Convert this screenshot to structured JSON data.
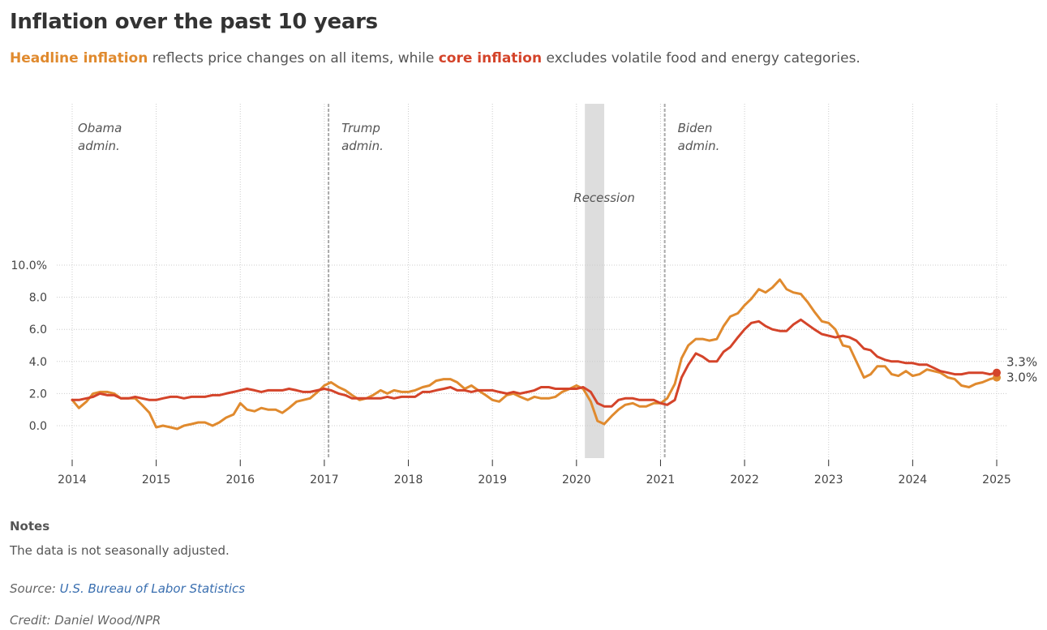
{
  "header": {
    "title": "Inflation over the past 10 years",
    "subtitle_headline": "Headline inflation",
    "subtitle_mid": " reflects price changes on all items, while ",
    "subtitle_core": "core inflation",
    "subtitle_end": " excludes volatile food and energy categories."
  },
  "footer": {
    "notes_title": "Notes",
    "notes_text": "The data is not seasonally adjusted.",
    "source_prefix": "Source: ",
    "source_link": "U.S. Bureau of Labor Statistics",
    "credit": "Credit: Daniel Wood/NPR"
  },
  "colors": {
    "headline": "#e08a2e",
    "core": "#d4442a",
    "grid": "#cccccc",
    "recession": "#dddddd",
    "admin_line": "#aaaaaa"
  },
  "chart_data": {
    "type": "line",
    "ylim": [
      -1,
      10
    ],
    "xlim": [
      2014,
      2025.1
    ],
    "y_ticks": [
      {
        "value": 10,
        "label": "10.0%"
      },
      {
        "value": 8,
        "label": "8.0"
      },
      {
        "value": 6,
        "label": "6.0"
      },
      {
        "value": 4,
        "label": "4.0"
      },
      {
        "value": 2,
        "label": "2.0"
      },
      {
        "value": 0,
        "label": "0.0"
      }
    ],
    "x_ticks": [
      {
        "value": 2014,
        "label": "2014"
      },
      {
        "value": 2015,
        "label": "2015"
      },
      {
        "value": 2016,
        "label": "2016"
      },
      {
        "value": 2017,
        "label": "2017"
      },
      {
        "value": 2018,
        "label": "2018"
      },
      {
        "value": 2019,
        "label": "2019"
      },
      {
        "value": 2020,
        "label": "2020"
      },
      {
        "value": 2021,
        "label": "2021"
      },
      {
        "value": 2022,
        "label": "2022"
      },
      {
        "value": 2023,
        "label": "2023"
      },
      {
        "value": 2024,
        "label": "2024"
      },
      {
        "value": 2025,
        "label": "2025"
      }
    ],
    "grid": true,
    "recession": {
      "start": 2020.1,
      "end": 2020.33,
      "label": "Recession"
    },
    "administrations": [
      {
        "start": 2014,
        "line": false,
        "lines": [
          "Obama",
          "admin."
        ]
      },
      {
        "start": 2017.05,
        "line": true,
        "lines": [
          "Trump",
          "admin."
        ]
      },
      {
        "start": 2021.05,
        "line": true,
        "lines": [
          "Biden",
          "admin."
        ]
      }
    ],
    "series": [
      {
        "key": "headline",
        "end_label": "3.0%",
        "points": [
          [
            2014.0,
            1.6
          ],
          [
            2014.08,
            1.1
          ],
          [
            2014.17,
            1.5
          ],
          [
            2014.25,
            2.0
          ],
          [
            2014.33,
            2.1
          ],
          [
            2014.42,
            2.1
          ],
          [
            2014.5,
            2.0
          ],
          [
            2014.58,
            1.7
          ],
          [
            2014.67,
            1.7
          ],
          [
            2014.75,
            1.7
          ],
          [
            2014.83,
            1.3
          ],
          [
            2014.92,
            0.8
          ],
          [
            2015.0,
            -0.1
          ],
          [
            2015.08,
            0.0
          ],
          [
            2015.17,
            -0.1
          ],
          [
            2015.25,
            -0.2
          ],
          [
            2015.33,
            0.0
          ],
          [
            2015.42,
            0.1
          ],
          [
            2015.5,
            0.2
          ],
          [
            2015.58,
            0.2
          ],
          [
            2015.67,
            0.0
          ],
          [
            2015.75,
            0.2
          ],
          [
            2015.83,
            0.5
          ],
          [
            2015.92,
            0.7
          ],
          [
            2016.0,
            1.4
          ],
          [
            2016.08,
            1.0
          ],
          [
            2016.17,
            0.9
          ],
          [
            2016.25,
            1.1
          ],
          [
            2016.33,
            1.0
          ],
          [
            2016.42,
            1.0
          ],
          [
            2016.5,
            0.8
          ],
          [
            2016.58,
            1.1
          ],
          [
            2016.67,
            1.5
          ],
          [
            2016.75,
            1.6
          ],
          [
            2016.83,
            1.7
          ],
          [
            2016.92,
            2.1
          ],
          [
            2017.0,
            2.5
          ],
          [
            2017.08,
            2.7
          ],
          [
            2017.17,
            2.4
          ],
          [
            2017.25,
            2.2
          ],
          [
            2017.33,
            1.9
          ],
          [
            2017.42,
            1.6
          ],
          [
            2017.5,
            1.7
          ],
          [
            2017.58,
            1.9
          ],
          [
            2017.67,
            2.2
          ],
          [
            2017.75,
            2.0
          ],
          [
            2017.83,
            2.2
          ],
          [
            2017.92,
            2.1
          ],
          [
            2018.0,
            2.1
          ],
          [
            2018.08,
            2.2
          ],
          [
            2018.17,
            2.4
          ],
          [
            2018.25,
            2.5
          ],
          [
            2018.33,
            2.8
          ],
          [
            2018.42,
            2.9
          ],
          [
            2018.5,
            2.9
          ],
          [
            2018.58,
            2.7
          ],
          [
            2018.67,
            2.3
          ],
          [
            2018.75,
            2.5
          ],
          [
            2018.83,
            2.2
          ],
          [
            2018.92,
            1.9
          ],
          [
            2019.0,
            1.6
          ],
          [
            2019.08,
            1.5
          ],
          [
            2019.17,
            1.9
          ],
          [
            2019.25,
            2.0
          ],
          [
            2019.33,
            1.8
          ],
          [
            2019.42,
            1.6
          ],
          [
            2019.5,
            1.8
          ],
          [
            2019.58,
            1.7
          ],
          [
            2019.67,
            1.7
          ],
          [
            2019.75,
            1.8
          ],
          [
            2019.83,
            2.1
          ],
          [
            2019.92,
            2.3
          ],
          [
            2020.0,
            2.5
          ],
          [
            2020.08,
            2.3
          ],
          [
            2020.17,
            1.5
          ],
          [
            2020.25,
            0.3
          ],
          [
            2020.33,
            0.1
          ],
          [
            2020.42,
            0.6
          ],
          [
            2020.5,
            1.0
          ],
          [
            2020.58,
            1.3
          ],
          [
            2020.67,
            1.4
          ],
          [
            2020.75,
            1.2
          ],
          [
            2020.83,
            1.2
          ],
          [
            2020.92,
            1.4
          ],
          [
            2021.0,
            1.4
          ],
          [
            2021.08,
            1.7
          ],
          [
            2021.17,
            2.6
          ],
          [
            2021.25,
            4.2
          ],
          [
            2021.33,
            5.0
          ],
          [
            2021.42,
            5.4
          ],
          [
            2021.5,
            5.4
          ],
          [
            2021.58,
            5.3
          ],
          [
            2021.67,
            5.4
          ],
          [
            2021.75,
            6.2
          ],
          [
            2021.83,
            6.8
          ],
          [
            2021.92,
            7.0
          ],
          [
            2022.0,
            7.5
          ],
          [
            2022.08,
            7.9
          ],
          [
            2022.17,
            8.5
          ],
          [
            2022.25,
            8.3
          ],
          [
            2022.33,
            8.6
          ],
          [
            2022.42,
            9.1
          ],
          [
            2022.5,
            8.5
          ],
          [
            2022.58,
            8.3
          ],
          [
            2022.67,
            8.2
          ],
          [
            2022.75,
            7.7
          ],
          [
            2022.83,
            7.1
          ],
          [
            2022.92,
            6.5
          ],
          [
            2023.0,
            6.4
          ],
          [
            2023.08,
            6.0
          ],
          [
            2023.17,
            5.0
          ],
          [
            2023.25,
            4.9
          ],
          [
            2023.33,
            4.0
          ],
          [
            2023.42,
            3.0
          ],
          [
            2023.5,
            3.2
          ],
          [
            2023.58,
            3.7
          ],
          [
            2023.67,
            3.7
          ],
          [
            2023.75,
            3.2
          ],
          [
            2023.83,
            3.1
          ],
          [
            2023.92,
            3.4
          ],
          [
            2024.0,
            3.1
          ],
          [
            2024.08,
            3.2
          ],
          [
            2024.17,
            3.5
          ],
          [
            2024.25,
            3.4
          ],
          [
            2024.33,
            3.3
          ],
          [
            2024.42,
            3.0
          ],
          [
            2024.5,
            2.9
          ],
          [
            2024.58,
            2.5
          ],
          [
            2024.67,
            2.4
          ],
          [
            2024.75,
            2.6
          ],
          [
            2024.83,
            2.7
          ],
          [
            2024.92,
            2.9
          ],
          [
            2025.0,
            3.0
          ]
        ]
      },
      {
        "key": "core",
        "end_label": "3.3%",
        "points": [
          [
            2014.0,
            1.6
          ],
          [
            2014.08,
            1.6
          ],
          [
            2014.17,
            1.7
          ],
          [
            2014.25,
            1.8
          ],
          [
            2014.33,
            2.0
          ],
          [
            2014.42,
            1.9
          ],
          [
            2014.5,
            1.9
          ],
          [
            2014.58,
            1.7
          ],
          [
            2014.67,
            1.7
          ],
          [
            2014.75,
            1.8
          ],
          [
            2014.83,
            1.7
          ],
          [
            2014.92,
            1.6
          ],
          [
            2015.0,
            1.6
          ],
          [
            2015.08,
            1.7
          ],
          [
            2015.17,
            1.8
          ],
          [
            2015.25,
            1.8
          ],
          [
            2015.33,
            1.7
          ],
          [
            2015.42,
            1.8
          ],
          [
            2015.5,
            1.8
          ],
          [
            2015.58,
            1.8
          ],
          [
            2015.67,
            1.9
          ],
          [
            2015.75,
            1.9
          ],
          [
            2015.83,
            2.0
          ],
          [
            2015.92,
            2.1
          ],
          [
            2016.0,
            2.2
          ],
          [
            2016.08,
            2.3
          ],
          [
            2016.17,
            2.2
          ],
          [
            2016.25,
            2.1
          ],
          [
            2016.33,
            2.2
          ],
          [
            2016.42,
            2.2
          ],
          [
            2016.5,
            2.2
          ],
          [
            2016.58,
            2.3
          ],
          [
            2016.67,
            2.2
          ],
          [
            2016.75,
            2.1
          ],
          [
            2016.83,
            2.1
          ],
          [
            2016.92,
            2.2
          ],
          [
            2017.0,
            2.3
          ],
          [
            2017.08,
            2.2
          ],
          [
            2017.17,
            2.0
          ],
          [
            2017.25,
            1.9
          ],
          [
            2017.33,
            1.7
          ],
          [
            2017.42,
            1.7
          ],
          [
            2017.5,
            1.7
          ],
          [
            2017.58,
            1.7
          ],
          [
            2017.67,
            1.7
          ],
          [
            2017.75,
            1.8
          ],
          [
            2017.83,
            1.7
          ],
          [
            2017.92,
            1.8
          ],
          [
            2018.0,
            1.8
          ],
          [
            2018.08,
            1.8
          ],
          [
            2018.17,
            2.1
          ],
          [
            2018.25,
            2.1
          ],
          [
            2018.33,
            2.2
          ],
          [
            2018.42,
            2.3
          ],
          [
            2018.5,
            2.4
          ],
          [
            2018.58,
            2.2
          ],
          [
            2018.67,
            2.2
          ],
          [
            2018.75,
            2.1
          ],
          [
            2018.83,
            2.2
          ],
          [
            2018.92,
            2.2
          ],
          [
            2019.0,
            2.2
          ],
          [
            2019.08,
            2.1
          ],
          [
            2019.17,
            2.0
          ],
          [
            2019.25,
            2.1
          ],
          [
            2019.33,
            2.0
          ],
          [
            2019.42,
            2.1
          ],
          [
            2019.5,
            2.2
          ],
          [
            2019.58,
            2.4
          ],
          [
            2019.67,
            2.4
          ],
          [
            2019.75,
            2.3
          ],
          [
            2019.83,
            2.3
          ],
          [
            2019.92,
            2.3
          ],
          [
            2020.0,
            2.3
          ],
          [
            2020.08,
            2.4
          ],
          [
            2020.17,
            2.1
          ],
          [
            2020.25,
            1.4
          ],
          [
            2020.33,
            1.2
          ],
          [
            2020.42,
            1.2
          ],
          [
            2020.5,
            1.6
          ],
          [
            2020.58,
            1.7
          ],
          [
            2020.67,
            1.7
          ],
          [
            2020.75,
            1.6
          ],
          [
            2020.83,
            1.6
          ],
          [
            2020.92,
            1.6
          ],
          [
            2021.0,
            1.4
          ],
          [
            2021.08,
            1.3
          ],
          [
            2021.17,
            1.6
          ],
          [
            2021.25,
            3.0
          ],
          [
            2021.33,
            3.8
          ],
          [
            2021.42,
            4.5
          ],
          [
            2021.5,
            4.3
          ],
          [
            2021.58,
            4.0
          ],
          [
            2021.67,
            4.0
          ],
          [
            2021.75,
            4.6
          ],
          [
            2021.83,
            4.9
          ],
          [
            2021.92,
            5.5
          ],
          [
            2022.0,
            6.0
          ],
          [
            2022.08,
            6.4
          ],
          [
            2022.17,
            6.5
          ],
          [
            2022.25,
            6.2
          ],
          [
            2022.33,
            6.0
          ],
          [
            2022.42,
            5.9
          ],
          [
            2022.5,
            5.9
          ],
          [
            2022.58,
            6.3
          ],
          [
            2022.67,
            6.6
          ],
          [
            2022.75,
            6.3
          ],
          [
            2022.83,
            6.0
          ],
          [
            2022.92,
            5.7
          ],
          [
            2023.0,
            5.6
          ],
          [
            2023.08,
            5.5
          ],
          [
            2023.17,
            5.6
          ],
          [
            2023.25,
            5.5
          ],
          [
            2023.33,
            5.3
          ],
          [
            2023.42,
            4.8
          ],
          [
            2023.5,
            4.7
          ],
          [
            2023.58,
            4.3
          ],
          [
            2023.67,
            4.1
          ],
          [
            2023.75,
            4.0
          ],
          [
            2023.83,
            4.0
          ],
          [
            2023.92,
            3.9
          ],
          [
            2024.0,
            3.9
          ],
          [
            2024.08,
            3.8
          ],
          [
            2024.17,
            3.8
          ],
          [
            2024.25,
            3.6
          ],
          [
            2024.33,
            3.4
          ],
          [
            2024.42,
            3.3
          ],
          [
            2024.5,
            3.2
          ],
          [
            2024.58,
            3.2
          ],
          [
            2024.67,
            3.3
          ],
          [
            2024.75,
            3.3
          ],
          [
            2024.83,
            3.3
          ],
          [
            2024.92,
            3.2
          ],
          [
            2025.0,
            3.3
          ]
        ]
      }
    ]
  }
}
